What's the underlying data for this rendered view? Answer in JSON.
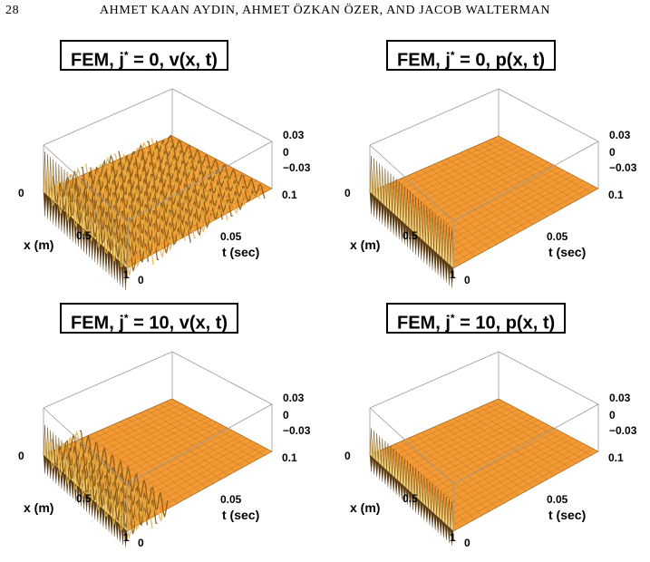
{
  "page": {
    "number": "28",
    "authors": "AHMET KAAN AYDIN, AHMET ÖZKAN ÖZER, AND JACOB WALTERMAN"
  },
  "colors": {
    "surface": "#f39a35",
    "grid": "#9a5a12",
    "spike_light": "#f5d27a",
    "spike_dark": "#5a3a10",
    "box": "#9a9a9a"
  },
  "panels": [
    {
      "title_pre": "FEM, j",
      "title_sup": "*",
      "title_post": " = 0, v(x, t)",
      "variable": "v",
      "j_star": 0,
      "spike_extent": "full",
      "x_label": "x (m)",
      "t_label": "t (sec)",
      "x_ticks": [
        "0",
        "0.5",
        "1"
      ],
      "t_ticks": [
        "0",
        "0.05",
        "0.1"
      ],
      "z_ticks": [
        "0.03",
        "0",
        "−0.03"
      ]
    },
    {
      "title_pre": "FEM, j",
      "title_sup": "*",
      "title_post": " = 0, p(x, t)",
      "variable": "p",
      "j_star": 0,
      "spike_extent": "edge",
      "x_label": "x (m)",
      "t_label": "t (sec)",
      "x_ticks": [
        "0",
        "0.5",
        "1"
      ],
      "t_ticks": [
        "0",
        "0.05",
        "0.1"
      ],
      "z_ticks": [
        "0.03",
        "0",
        "−0.03"
      ]
    },
    {
      "title_pre": "FEM, j",
      "title_sup": "*",
      "title_post": " = 10, v(x, t)",
      "variable": "v",
      "j_star": 10,
      "spike_extent": "partial",
      "x_label": "x (m)",
      "t_label": "t (sec)",
      "x_ticks": [
        "0",
        "0.5",
        "1"
      ],
      "t_ticks": [
        "0",
        "0.05",
        "0.1"
      ],
      "z_ticks": [
        "0.03",
        "0",
        "−0.03"
      ]
    },
    {
      "title_pre": "FEM, j",
      "title_sup": "*",
      "title_post": " = 10, p(x, t)",
      "variable": "p",
      "j_star": 10,
      "spike_extent": "edge",
      "x_label": "x (m)",
      "t_label": "t (sec)",
      "x_ticks": [
        "0",
        "0.5",
        "1"
      ],
      "t_ticks": [
        "0",
        "0.05",
        "0.1"
      ],
      "z_ticks": [
        "0.03",
        "0",
        "−0.03"
      ]
    }
  ]
}
